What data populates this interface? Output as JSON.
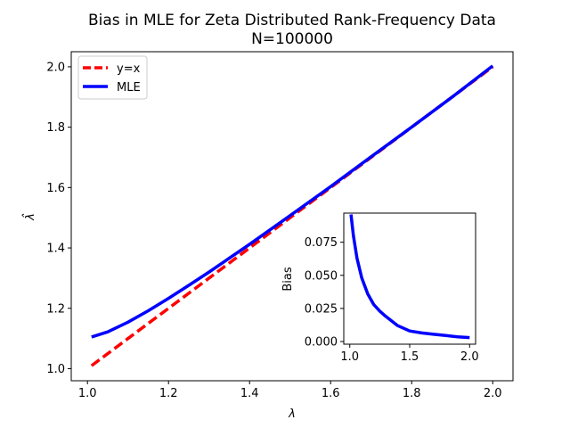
{
  "chart_data": [
    {
      "type": "line",
      "title": "Bias in MLE for Zeta Distributed Rank-Frequency Data",
      "subtitle": "N=100000",
      "xlabel": "λ",
      "ylabel": "λ̂",
      "xlim": [
        0.96,
        2.05
      ],
      "ylim": [
        0.96,
        2.05
      ],
      "xticks": [
        1.0,
        1.2,
        1.4,
        1.6,
        1.8,
        2.0
      ],
      "xtick_labels": [
        "1.0",
        "1.2",
        "1.4",
        "1.6",
        "1.8",
        "2.0"
      ],
      "yticks": [
        1.0,
        1.2,
        1.4,
        1.6,
        1.8,
        2.0
      ],
      "ytick_labels": [
        "1.0",
        "1.2",
        "1.4",
        "1.6",
        "1.8",
        "2.0"
      ],
      "grid": false,
      "legend_position": "top-left",
      "series": [
        {
          "name": "y=x",
          "color": "#ff0000",
          "style": "dashed",
          "x": [
            1.01,
            2.0
          ],
          "y": [
            1.01,
            2.0
          ]
        },
        {
          "name": "MLE",
          "color": "#0000ff",
          "style": "solid",
          "x": [
            1.01,
            1.05,
            1.1,
            1.15,
            1.2,
            1.25,
            1.3,
            1.4,
            1.5,
            1.6,
            1.7,
            1.8,
            1.9,
            2.0
          ],
          "y": [
            1.105,
            1.122,
            1.154,
            1.192,
            1.233,
            1.276,
            1.32,
            1.412,
            1.507,
            1.603,
            1.702,
            1.8,
            1.9,
            2.003
          ]
        }
      ]
    },
    {
      "type": "line",
      "title": "",
      "xlabel": "",
      "ylabel": "Bias",
      "xlim": [
        0.95,
        2.05
      ],
      "ylim": [
        -0.002,
        0.097
      ],
      "xticks": [
        1.0,
        1.5,
        2.0
      ],
      "xtick_labels": [
        "1.0",
        "1.5",
        "2.0"
      ],
      "yticks": [
        0.0,
        0.025,
        0.05,
        0.075
      ],
      "ytick_labels": [
        "0.000",
        "0.025",
        "0.050",
        "0.075"
      ],
      "grid": false,
      "series": [
        {
          "color": "#0000ff",
          "style": "solid",
          "x": [
            1.01,
            1.03,
            1.06,
            1.1,
            1.15,
            1.2,
            1.25,
            1.3,
            1.4,
            1.5,
            1.6,
            1.7,
            1.8,
            1.9,
            2.0
          ],
          "y": [
            0.096,
            0.08,
            0.063,
            0.048,
            0.036,
            0.028,
            0.023,
            0.019,
            0.012,
            0.008,
            0.0065,
            0.0055,
            0.0045,
            0.0035,
            0.003
          ]
        }
      ]
    }
  ]
}
